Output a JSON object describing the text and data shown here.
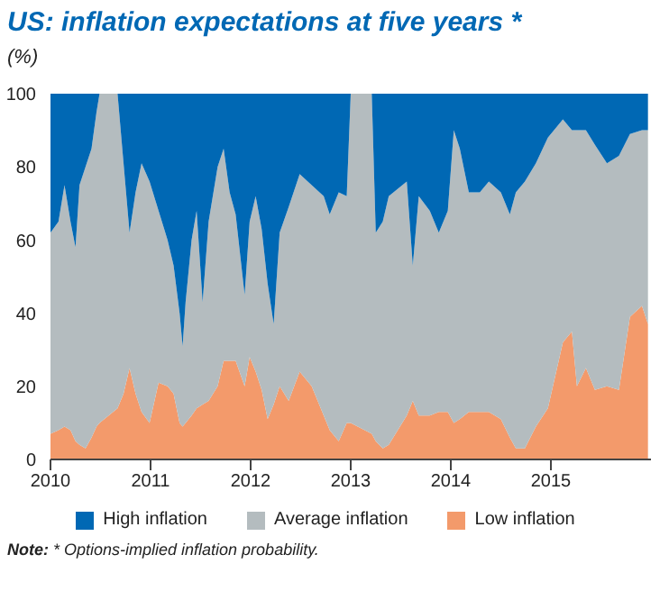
{
  "chart_data": {
    "type": "area",
    "title": "US: inflation expectations at five years *",
    "ylabel": "(%)",
    "stacked": true,
    "x": [
      2010.0,
      2010.08,
      2010.14,
      2010.2,
      2010.25,
      2010.29,
      2010.35,
      2010.41,
      2010.46,
      2010.49,
      2010.67,
      2010.73,
      2010.79,
      2010.85,
      2010.91,
      2010.99,
      2011.08,
      2011.17,
      2011.23,
      2011.29,
      2011.32,
      2011.35,
      2011.41,
      2011.46,
      2011.52,
      2011.58,
      2011.67,
      2011.73,
      2011.79,
      2011.85,
      2011.94,
      2011.99,
      2012.05,
      2012.11,
      2012.17,
      2012.23,
      2012.29,
      2012.38,
      2012.49,
      2012.61,
      2012.73,
      2012.79,
      2012.88,
      2012.96,
      2013.0,
      2013.21,
      2013.25,
      2013.32,
      2013.38,
      2013.56,
      2013.62,
      2013.68,
      2013.79,
      2013.88,
      2013.97,
      2014.03,
      2014.09,
      2014.18,
      2014.29,
      2014.38,
      2014.5,
      2014.59,
      2014.65,
      2014.74,
      2014.85,
      2014.97,
      2015.12,
      2015.21,
      2015.26,
      2015.35,
      2015.44,
      2015.56,
      2015.68,
      2015.79,
      2015.91,
      2015.97
    ],
    "series": [
      {
        "name": "Low inflation",
        "color": "#f39a6b",
        "values": [
          7,
          8,
          9,
          8,
          5,
          4,
          3,
          6,
          9,
          10,
          14,
          18,
          25,
          18,
          13,
          10,
          21,
          20,
          18,
          10,
          9,
          10,
          12,
          14,
          15,
          16,
          20,
          27,
          27,
          27,
          20,
          28,
          24,
          19,
          11,
          15,
          20,
          16,
          24,
          20,
          12,
          8,
          5,
          10,
          10,
          7,
          5,
          3,
          4,
          12,
          16,
          12,
          12,
          13,
          13,
          10,
          11,
          13,
          13,
          13,
          11,
          6,
          3,
          3,
          9,
          14,
          32,
          35,
          20,
          25,
          19,
          20,
          19,
          39,
          42,
          37
        ]
      },
      {
        "name": "Average inflation",
        "color": "#b4bcbf",
        "values": [
          55,
          57,
          66,
          57,
          53,
          71,
          77,
          79,
          86,
          90,
          86,
          63,
          37,
          55,
          68,
          66,
          47,
          40,
          35,
          30,
          22,
          33,
          48,
          54,
          28,
          49,
          60,
          58,
          46,
          40,
          25,
          37,
          48,
          44,
          37,
          22,
          42,
          53,
          54,
          55,
          60,
          59,
          68,
          62,
          90,
          93,
          57,
          62,
          68,
          64,
          37,
          60,
          56,
          49,
          55,
          80,
          74,
          60,
          60,
          63,
          62,
          61,
          70,
          73,
          72,
          74,
          61,
          55,
          70,
          65,
          67,
          61,
          64,
          50,
          48,
          53
        ]
      },
      {
        "name": "High inflation",
        "color": "#0068b4",
        "values": [
          38,
          35,
          25,
          35,
          42,
          25,
          20,
          15,
          5,
          0,
          0,
          19,
          38,
          27,
          19,
          24,
          32,
          40,
          47,
          60,
          69,
          57,
          40,
          32,
          57,
          35,
          20,
          15,
          27,
          33,
          55,
          35,
          28,
          37,
          52,
          63,
          38,
          31,
          22,
          25,
          28,
          33,
          27,
          28,
          0,
          0,
          38,
          35,
          28,
          24,
          47,
          28,
          32,
          38,
          32,
          10,
          15,
          27,
          27,
          24,
          27,
          33,
          27,
          24,
          19,
          12,
          7,
          10,
          10,
          10,
          14,
          19,
          17,
          11,
          10,
          10
        ]
      }
    ],
    "xlim": [
      2010,
      2016
    ],
    "xticks": [
      2010,
      2011,
      2012,
      2013,
      2014,
      2015
    ],
    "ylim": [
      0,
      100
    ],
    "yticks": [
      0,
      20,
      40,
      60,
      80,
      100
    ],
    "grid": false,
    "legend": "bottom",
    "annotations": [
      "Note: * Options-implied inflation probability."
    ]
  }
}
